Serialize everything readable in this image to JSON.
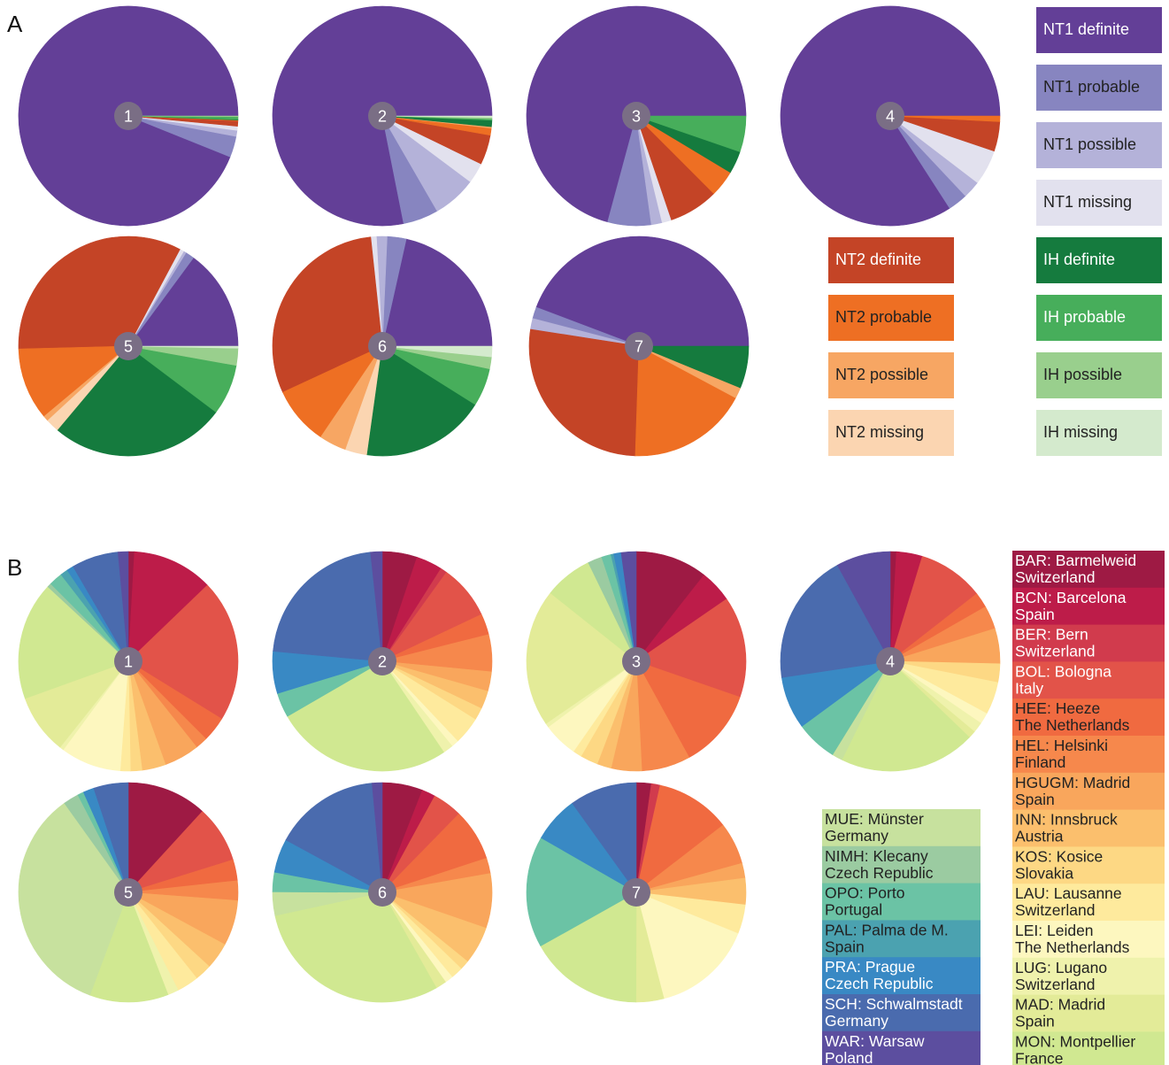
{
  "panels": [
    {
      "letter": "A"
    },
    {
      "letter": "B"
    }
  ],
  "colors": {
    "NT1 definite": "#633f97",
    "NT1 probable": "#8785c0",
    "NT1 possible": "#b4b2d9",
    "NT1 missing": "#e2e1ee",
    "NT2 definite": "#c44426",
    "NT2 probable": "#ee6f23",
    "NT2 possible": "#f7a663",
    "NT2 missing": "#fbd5b1",
    "IH definite": "#157b3e",
    "IH probable": "#47ae5b",
    "IH possible": "#99cf8d",
    "IH missing": "#d4eacd",
    "pie_center": "#7a6e85",
    "BAR": "#9e1a44",
    "BCN": "#bd1c49",
    "BER": "#d13b4d",
    "BOL": "#e25349",
    "HEE": "#f06a40",
    "HEL": "#f6884c",
    "HGUGM": "#f9a65c",
    "INN": "#fbbf6d",
    "KOS": "#fdd884",
    "LAU": "#feea9d",
    "LEI": "#fdf7bf",
    "LUG": "#eff2ac",
    "MAD": "#e3eb98",
    "MON": "#d0e891",
    "MUE": "#c7e19e",
    "NIMH": "#9bcba1",
    "OPO": "#6bc3a5",
    "PAL": "#4ba2b0",
    "PRA": "#3989c4",
    "SCH": "#4a6bae",
    "WAR": "#5c4e9f"
  },
  "chart_data": [
    {
      "type": "pie",
      "panel": "A",
      "categories": [
        "NT1 definite",
        "NT1 probable",
        "NT1 possible",
        "NT1 missing",
        "NT2 definite",
        "NT2 probable",
        "NT2 possible",
        "NT2 missing",
        "IH definite",
        "IH probable",
        "IH possible",
        "IH missing"
      ],
      "start_angle": "east, counterclockwise",
      "pies": [
        {
          "label": "1",
          "values": [
            94.3,
            3.1,
            0.9,
            0.6,
            0.8,
            0.1,
            0,
            0,
            0.1,
            0.4,
            0.1,
            0
          ]
        },
        {
          "label": "2",
          "values": [
            75.0,
            5.0,
            6.2,
            2.9,
            4.2,
            1.0,
            0.2,
            0,
            0.9,
            0.2,
            0.2,
            0.2
          ]
        },
        {
          "label": "3",
          "values": [
            70.8,
            6.4,
            1.6,
            1.4,
            7.3,
            3.9,
            0,
            0,
            3.3,
            5.3,
            0,
            0
          ]
        },
        {
          "label": "4",
          "values": [
            81.0,
            2.8,
            2.5,
            5.0,
            4.2,
            0.8,
            0,
            0,
            0,
            0,
            0,
            0
          ]
        },
        {
          "label": "5",
          "values": [
            14.8,
            1.3,
            0.4,
            0.6,
            33.0,
            10.6,
            0.8,
            2.0,
            25.7,
            7.4,
            2.5,
            0.3
          ]
        },
        {
          "label": "6",
          "values": [
            20.7,
            2.7,
            1.5,
            0.8,
            29.1,
            8.3,
            3.9,
            3.1,
            17.6,
            5.4,
            1.7,
            1.5
          ]
        },
        {
          "label": "7",
          "values": [
            44.2,
            1.7,
            1.6,
            0,
            26.9,
            17.7,
            1.6,
            0,
            6.2,
            0,
            0,
            0
          ]
        }
      ],
      "legend": [
        "NT1 definite",
        "NT1 probable",
        "NT1 possible",
        "NT1 missing",
        "NT2 definite",
        "NT2 probable",
        "NT2 possible",
        "NT2 missing",
        "IH definite",
        "IH probable",
        "IH possible",
        "IH missing"
      ]
    },
    {
      "type": "pie",
      "panel": "B",
      "categories": [
        "BAR",
        "BCN",
        "BER",
        "BOL",
        "HEE",
        "HEL",
        "HGUGM",
        "INN",
        "KOS",
        "LAU",
        "LEI",
        "LUG",
        "MAD",
        "MON",
        "MUE",
        "NIMH",
        "OPO",
        "PAL",
        "PRA",
        "SCH",
        "WAR"
      ],
      "start_angle": "north, clockwise",
      "pies": [
        {
          "label": "1",
          "values": [
            0.9,
            11.9,
            0,
            21.0,
            3.7,
            1.8,
            5.2,
            3.5,
            1.7,
            1.5,
            8.9,
            0.6,
            8.8,
            17.4,
            0,
            0.6,
            2.0,
            1.1,
            1.0,
            6.9,
            1.5
          ]
        },
        {
          "label": "2",
          "values": [
            4.8,
            3.6,
            0.9,
            7.5,
            2.9,
            5.1,
            2.7,
            2.5,
            1.7,
            3.8,
            1.0,
            1.4,
            0,
            24.4,
            0,
            0,
            3.4,
            0,
            5.8,
            20.4,
            1.6
          ]
        },
        {
          "label": "3",
          "values": [
            10.6,
            4.8,
            0,
            14.9,
            11.7,
            7.2,
            4.5,
            2.1,
            2.6,
            1.3,
            5.1,
            0.6,
            20.3,
            7.1,
            0,
            2.1,
            1.4,
            0.4,
            1.1,
            0,
            2.2
          ]
        },
        {
          "label": "4",
          "values": [
            1.0,
            4.2,
            0,
            10.7,
            2.5,
            3.8,
            5.7,
            0,
            3.0,
            5.3,
            1.8,
            1.7,
            1.2,
            22.1,
            1.7,
            0,
            6.7,
            0,
            8.5,
            21.3,
            8.8
          ]
        },
        {
          "label": "5",
          "values": [
            11.8,
            0,
            0,
            8.4,
            3.1,
            2.9,
            6.7,
            3.9,
            2.5,
            3.2,
            0,
            1.6,
            0,
            11.6,
            34.4,
            2.3,
            0.9,
            0,
            1.6,
            5.1,
            0
          ]
        },
        {
          "label": "6",
          "values": [
            6.0,
            2.0,
            0,
            4.4,
            7.7,
            2.3,
            8.1,
            5.6,
            1.4,
            1.8,
            1.2,
            0,
            1.6,
            30.0,
            3.5,
            0,
            2.9,
            0,
            5.0,
            15.7,
            1.5
          ]
        },
        {
          "label": "7",
          "values": [
            2.2,
            0,
            1.3,
            0,
            11.0,
            6.2,
            2.2,
            3.9,
            0,
            4.3,
            14.8,
            0,
            4.1,
            16.8,
            0,
            0,
            16.4,
            0,
            6.8,
            9.9,
            0
          ]
        }
      ],
      "legend_right": [
        {
          "line1": "BAR: Barmelweid",
          "line2": "Switzerland",
          "key": "BAR"
        },
        {
          "line1": "BCN: Barcelona",
          "line2": "Spain",
          "key": "BCN"
        },
        {
          "line1": "BER: Bern",
          "line2": "Switzerland",
          "key": "BER"
        },
        {
          "line1": "BOL: Bologna",
          "line2": "Italy",
          "key": "BOL"
        },
        {
          "line1": "HEE: Heeze",
          "line2": "The Netherlands",
          "key": "HEE"
        },
        {
          "line1": "HEL: Helsinki",
          "line2": "Finland",
          "key": "HEL"
        },
        {
          "line1": "HGUGM: Madrid",
          "line2": "Spain",
          "key": "HGUGM"
        },
        {
          "line1": "INN: Innsbruck",
          "line2": "Austria",
          "key": "INN"
        },
        {
          "line1": "KOS: Kosice",
          "line2": "Slovakia",
          "key": "KOS"
        },
        {
          "line1": "LAU: Lausanne",
          "line2": "Switzerland",
          "key": "LAU"
        },
        {
          "line1": "LEI: Leiden",
          "line2": "The Netherlands",
          "key": "LEI"
        },
        {
          "line1": "LUG: Lugano",
          "line2": "Switzerland",
          "key": "LUG"
        },
        {
          "line1": "MAD: Madrid",
          "line2": "Spain",
          "key": "MAD"
        },
        {
          "line1": "MON: Montpellier",
          "line2": "France",
          "key": "MON"
        }
      ],
      "legend_left": [
        {
          "line1": "MUE: Münster",
          "line2": "Germany",
          "key": "MUE"
        },
        {
          "line1": "NIMH: Klecany",
          "line2": "Czech Republic",
          "key": "NIMH"
        },
        {
          "line1": "OPO: Porto",
          "line2": "Portugal",
          "key": "OPO"
        },
        {
          "line1": "PAL: Palma de M.",
          "line2": "Spain",
          "key": "PAL"
        },
        {
          "line1": "PRA: Prague",
          "line2": "Czech Republic",
          "key": "PRA"
        },
        {
          "line1": "SCH: Schwalmstadt",
          "line2": "Germany",
          "key": "SCH"
        },
        {
          "line1": "WAR: Warsaw",
          "line2": "Poland",
          "key": "WAR"
        }
      ]
    }
  ]
}
